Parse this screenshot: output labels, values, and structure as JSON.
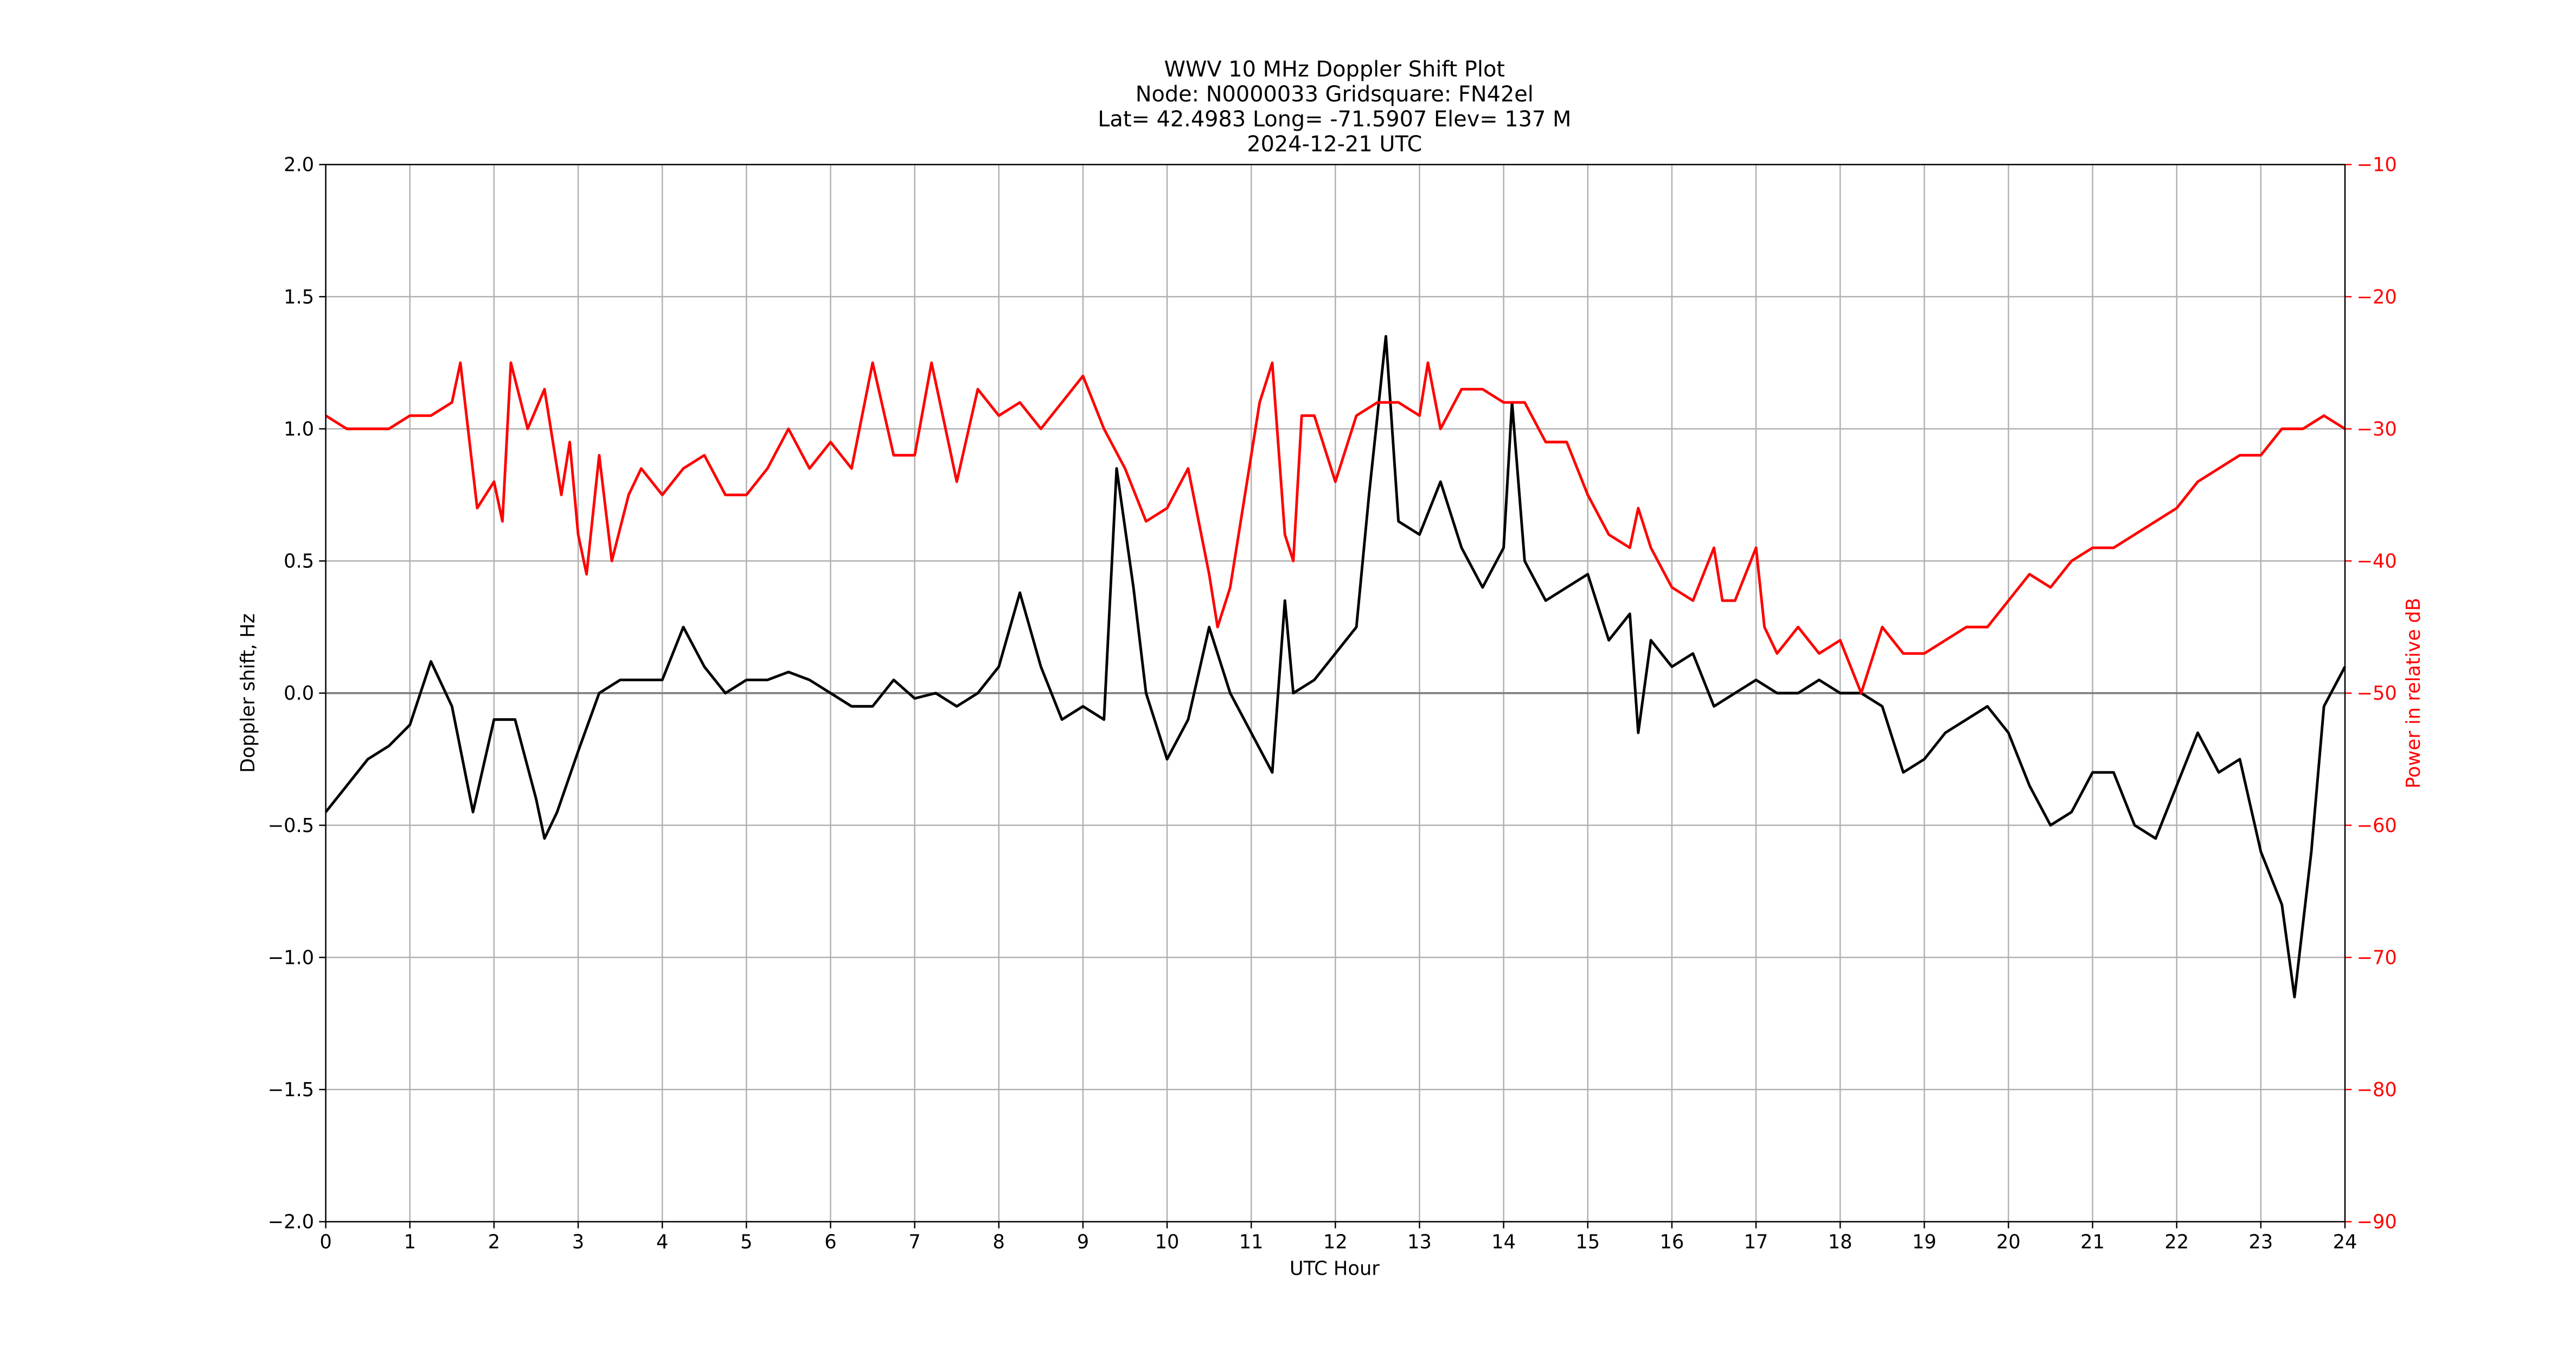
{
  "chart_data": {
    "type": "line",
    "title": [
      "WWV 10 MHz Doppler Shift Plot",
      "Node:  N0000033     Gridsquare:  FN42el",
      "Lat= 42.4983    Long= -71.5907    Elev= 137 M",
      "2024-12-21  UTC"
    ],
    "x_label": "UTC Hour",
    "y_label": "Doppler shift, Hz",
    "y2_label": "Power in relative dB",
    "xlim": [
      0,
      24
    ],
    "xticks": [
      0,
      1,
      2,
      3,
      4,
      5,
      6,
      7,
      8,
      9,
      10,
      11,
      12,
      13,
      14,
      15,
      16,
      17,
      18,
      19,
      20,
      21,
      22,
      23,
      24
    ],
    "ylim": [
      -2.0,
      2.0
    ],
    "yticks": [
      {
        "value": -2.0,
        "label": "−2.0"
      },
      {
        "value": -1.5,
        "label": "−1.5"
      },
      {
        "value": -1.0,
        "label": "−1.0"
      },
      {
        "value": -0.5,
        "label": "−0.5"
      },
      {
        "value": 0.0,
        "label": "0.0"
      },
      {
        "value": 0.5,
        "label": "0.5"
      },
      {
        "value": 1.0,
        "label": "1.0"
      },
      {
        "value": 1.5,
        "label": "1.5"
      },
      {
        "value": 2.0,
        "label": "2.0"
      }
    ],
    "y2lim": [
      -90,
      -10
    ],
    "y2ticks": [
      {
        "value": -90,
        "label": "−90"
      },
      {
        "value": -80,
        "label": "−80"
      },
      {
        "value": -70,
        "label": "−70"
      },
      {
        "value": -60,
        "label": "−60"
      },
      {
        "value": -50,
        "label": "−50"
      },
      {
        "value": -40,
        "label": "−40"
      },
      {
        "value": -30,
        "label": "−30"
      },
      {
        "value": -20,
        "label": "−20"
      },
      {
        "value": -10,
        "label": "−10"
      }
    ],
    "y2_color": "#ff0000",
    "grid": true,
    "zero_line": true,
    "series": [
      {
        "color": "#000000",
        "x": [
          0,
          0.25,
          0.5,
          0.75,
          1.0,
          1.25,
          1.5,
          1.75,
          2.0,
          2.25,
          2.5,
          2.6,
          2.75,
          3.0,
          3.25,
          3.5,
          3.75,
          4.0,
          4.25,
          4.5,
          4.75,
          5.0,
          5.25,
          5.5,
          5.75,
          6.0,
          6.25,
          6.5,
          6.75,
          7.0,
          7.25,
          7.5,
          7.75,
          8.0,
          8.25,
          8.5,
          8.75,
          9.0,
          9.25,
          9.4,
          9.6,
          9.75,
          10.0,
          10.25,
          10.5,
          10.75,
          11.0,
          11.25,
          11.4,
          11.5,
          11.75,
          12.0,
          12.25,
          12.4,
          12.6,
          12.75,
          13.0,
          13.25,
          13.5,
          13.75,
          14.0,
          14.1,
          14.25,
          14.5,
          14.75,
          15.0,
          15.25,
          15.5,
          15.6,
          15.75,
          16.0,
          16.25,
          16.5,
          16.75,
          17.0,
          17.25,
          17.5,
          17.75,
          18.0,
          18.25,
          18.5,
          18.75,
          19.0,
          19.25,
          19.5,
          19.75,
          20.0,
          20.25,
          20.5,
          20.75,
          21.0,
          21.25,
          21.5,
          21.75,
          22.0,
          22.25,
          22.5,
          22.75,
          23.0,
          23.25,
          23.4,
          23.6,
          23.75,
          24.0
        ],
        "values": [
          -0.45,
          -0.35,
          -0.25,
          -0.2,
          -0.12,
          0.12,
          -0.05,
          -0.45,
          -0.1,
          -0.1,
          -0.4,
          -0.55,
          -0.45,
          -0.22,
          0.0,
          0.05,
          0.05,
          0.05,
          0.25,
          0.1,
          0.0,
          0.05,
          0.05,
          0.08,
          0.05,
          0.0,
          -0.05,
          -0.05,
          0.05,
          -0.02,
          0.0,
          -0.05,
          0.0,
          0.1,
          0.38,
          0.1,
          -0.1,
          -0.05,
          -0.1,
          0.85,
          0.4,
          0.0,
          -0.25,
          -0.1,
          0.25,
          0.0,
          -0.15,
          -0.3,
          0.35,
          0.0,
          0.05,
          0.15,
          0.25,
          0.75,
          1.35,
          0.65,
          0.6,
          0.8,
          0.55,
          0.4,
          0.55,
          1.1,
          0.5,
          0.35,
          0.4,
          0.45,
          0.2,
          0.3,
          -0.15,
          0.2,
          0.1,
          0.15,
          -0.05,
          0.0,
          0.05,
          0.0,
          0.0,
          0.05,
          0.0,
          0.0,
          -0.05,
          -0.3,
          -0.25,
          -0.15,
          -0.1,
          -0.05,
          -0.15,
          -0.35,
          -0.5,
          -0.45,
          -0.3,
          -0.3,
          -0.5,
          -0.55,
          -0.35,
          -0.15,
          -0.3,
          -0.25,
          -0.6,
          -0.8,
          -1.15,
          -0.6,
          -0.05,
          0.1
        ]
      },
      {
        "color": "#ff0000",
        "axis": "y2",
        "x": [
          0,
          0.25,
          0.5,
          0.75,
          1.0,
          1.25,
          1.5,
          1.6,
          1.8,
          2.0,
          2.1,
          2.2,
          2.4,
          2.6,
          2.8,
          2.9,
          3.0,
          3.1,
          3.25,
          3.4,
          3.6,
          3.75,
          4.0,
          4.25,
          4.5,
          4.75,
          5.0,
          5.25,
          5.5,
          5.75,
          6.0,
          6.25,
          6.5,
          6.75,
          7.0,
          7.2,
          7.5,
          7.75,
          8.0,
          8.25,
          8.5,
          8.75,
          9.0,
          9.25,
          9.5,
          9.75,
          10.0,
          10.25,
          10.5,
          10.6,
          10.75,
          11.0,
          11.1,
          11.25,
          11.4,
          11.5,
          11.6,
          11.75,
          12.0,
          12.25,
          12.5,
          12.75,
          13.0,
          13.1,
          13.25,
          13.5,
          13.75,
          14.0,
          14.25,
          14.5,
          14.75,
          15.0,
          15.25,
          15.5,
          15.6,
          15.75,
          16.0,
          16.25,
          16.5,
          16.6,
          16.75,
          17.0,
          17.1,
          17.25,
          17.5,
          17.75,
          18.0,
          18.25,
          18.5,
          18.75,
          19.0,
          19.25,
          19.5,
          19.75,
          20.0,
          20.25,
          20.5,
          20.75,
          21.0,
          21.25,
          21.5,
          21.75,
          22.0,
          22.25,
          22.5,
          22.75,
          23.0,
          23.25,
          23.5,
          23.75,
          24.0
        ],
        "values": [
          -29,
          -30,
          -30,
          -30,
          -29,
          -29,
          -28,
          -25,
          -36,
          -34,
          -37,
          -25,
          -30,
          -27,
          -35,
          -31,
          -38,
          -41,
          -32,
          -40,
          -35,
          -33,
          -35,
          -33,
          -32,
          -35,
          -35,
          -33,
          -30,
          -33,
          -31,
          -33,
          -25,
          -32,
          -32,
          -25,
          -34,
          -27,
          -29,
          -28,
          -30,
          -28,
          -26,
          -30,
          -33,
          -37,
          -36,
          -33,
          -41,
          -45,
          -42,
          -32,
          -28,
          -25,
          -38,
          -40,
          -29,
          -29,
          -34,
          -29,
          -28,
          -28,
          -29,
          -25,
          -30,
          -27,
          -27,
          -28,
          -28,
          -31,
          -31,
          -35,
          -38,
          -39,
          -36,
          -39,
          -42,
          -43,
          -39,
          -43,
          -43,
          -39,
          -45,
          -47,
          -45,
          -47,
          -46,
          -50,
          -45,
          -47,
          -47,
          -46,
          -45,
          -45,
          -43,
          -41,
          -42,
          -40,
          -39,
          -39,
          -38,
          -37,
          -36,
          -34,
          -33,
          -32,
          -32,
          -30,
          -30,
          -29,
          -30
        ]
      }
    ]
  }
}
